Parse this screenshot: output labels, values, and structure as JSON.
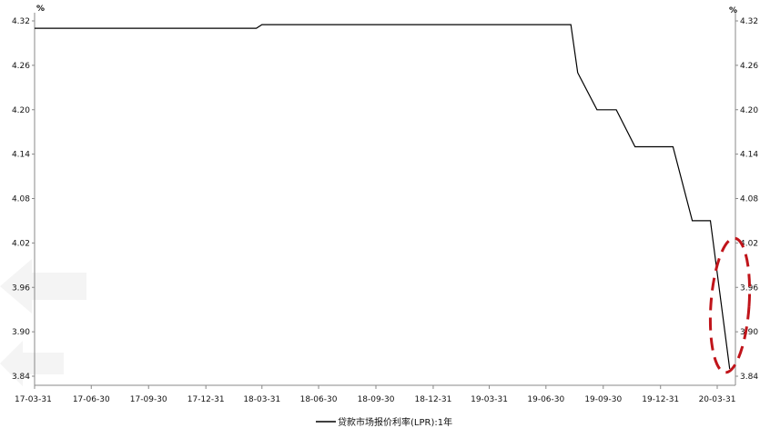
{
  "chart_data": {
    "type": "line",
    "unit_left": "%",
    "unit_right": "%",
    "y_ticks": [
      "4.32",
      "4.26",
      "4.20",
      "4.14",
      "4.08",
      "4.02",
      "3.96",
      "3.90",
      "3.84"
    ],
    "y_tick_values": [
      4.32,
      4.26,
      4.2,
      4.14,
      4.08,
      4.02,
      3.96,
      3.9,
      3.84
    ],
    "y_ticks_right": [
      "4.32",
      "4.26",
      "4.20",
      "4.14",
      "4.08",
      "4.02",
      "3.96",
      "3.90",
      "3.84"
    ],
    "x_ticks": [
      "17-03-31",
      "17-06-30",
      "17-09-30",
      "17-12-31",
      "18-03-31",
      "18-06-30",
      "18-09-30",
      "18-12-31",
      "19-03-31",
      "19-06-30",
      "19-09-30",
      "19-12-31",
      "20-03-31"
    ],
    "ylim": [
      3.83,
      4.33
    ],
    "xlim": [
      "2017-03-31",
      "2020-04-20"
    ],
    "grid": false,
    "legend": "bottom-center",
    "series": [
      {
        "name": "贷款市场报价利率(LPR):1年",
        "color": "#000000",
        "points": [
          [
            "2017-03-31",
            4.31
          ],
          [
            "2018-03-20",
            4.31
          ],
          [
            "2018-03-22",
            4.31
          ],
          [
            "2018-03-31",
            4.315
          ],
          [
            "2019-08-09",
            4.315
          ],
          [
            "2019-08-20",
            4.25
          ],
          [
            "2019-09-20",
            4.2
          ],
          [
            "2019-10-21",
            4.2
          ],
          [
            "2019-11-20",
            4.15
          ],
          [
            "2020-01-20",
            4.15
          ],
          [
            "2020-02-20",
            4.05
          ],
          [
            "2020-03-20",
            4.05
          ],
          [
            "2020-04-20",
            3.85
          ]
        ]
      }
    ],
    "annotation": {
      "shape": "dashed-ellipse",
      "color": "#c0141a",
      "around": "2020-03-20 to 2020-04-20"
    }
  }
}
